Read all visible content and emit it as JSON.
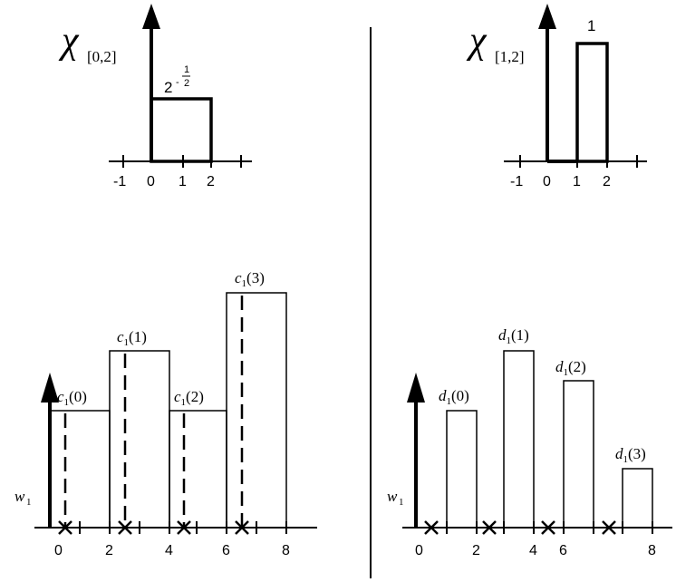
{
  "left_top": {
    "symbol": "χ",
    "subscript": "[0,2]",
    "height_label_base": "2",
    "height_label_exp_sign": "-",
    "height_label_exp_num": "1",
    "height_label_exp_den": "2",
    "tick_labels": [
      "-1",
      "0",
      "1",
      "2"
    ]
  },
  "right_top": {
    "symbol": "χ",
    "subscript": "[1,2]",
    "height_label": "1",
    "tick_labels": [
      "-1",
      "0",
      "1",
      "2"
    ]
  },
  "left_bottom": {
    "y_label_main": "w",
    "y_label_sub": "1",
    "coef_main": "c",
    "coef_sub": "1",
    "coef_args": [
      "(0)",
      "(1)",
      "(2)",
      "(3)"
    ],
    "tick_labels": [
      "0",
      "2",
      "4",
      "6",
      "8"
    ]
  },
  "right_bottom": {
    "y_label_main": "w",
    "y_label_sub": "1",
    "coef_main": "d",
    "coef_sub": "1",
    "coef_args": [
      "(0)",
      "(1)",
      "(2)",
      "(3)"
    ],
    "tick_labels": [
      "0",
      "2",
      "4",
      "6",
      "8"
    ]
  }
}
